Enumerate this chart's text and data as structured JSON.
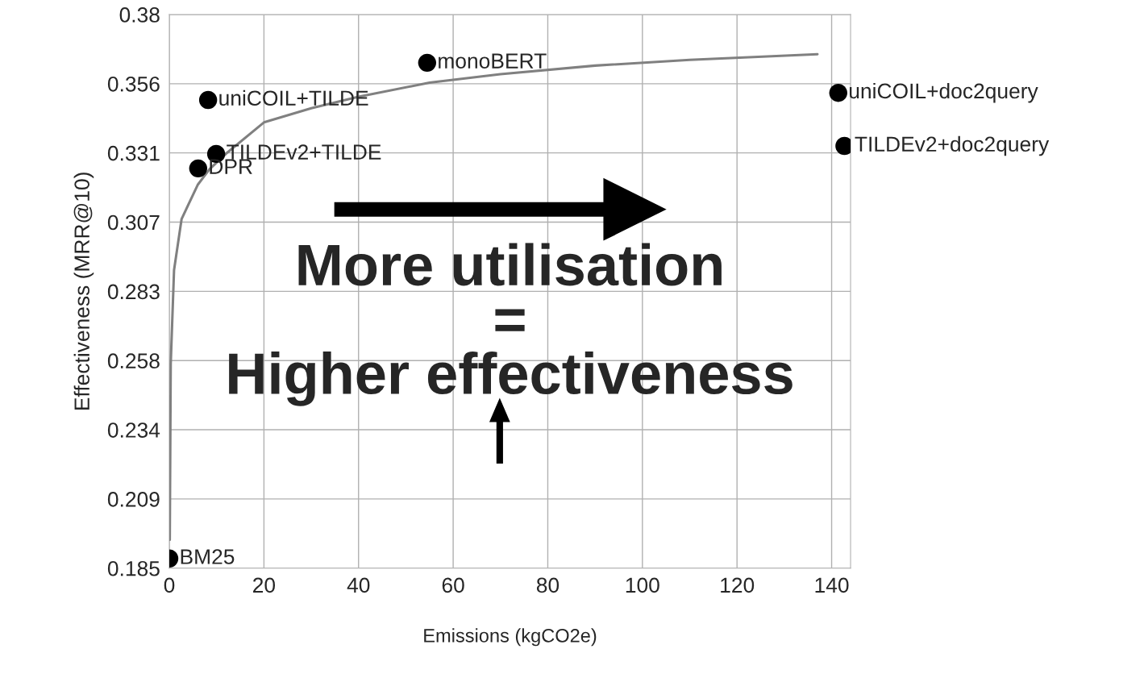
{
  "chart_data": {
    "type": "scatter",
    "xlabel": "Emissions (kgCO2e)",
    "ylabel": "Effectiveness (MRR@10)",
    "xlim": [
      0,
      144
    ],
    "xticks": [
      0,
      20,
      40,
      60,
      80,
      100,
      120,
      140
    ],
    "ylim": [
      0.185,
      0.38
    ],
    "yticks": [
      {
        "value": 0.185,
        "label": "0.185"
      },
      {
        "value": 0.209375,
        "label": "0.209"
      },
      {
        "value": 0.23375,
        "label": "0.234"
      },
      {
        "value": 0.258125,
        "label": "0.258"
      },
      {
        "value": 0.2825,
        "label": "0.283"
      },
      {
        "value": 0.306875,
        "label": "0.307"
      },
      {
        "value": 0.33125,
        "label": "0.331"
      },
      {
        "value": 0.355625,
        "label": "0.356"
      },
      {
        "value": 0.38,
        "label": "0.38"
      }
    ],
    "grid": true,
    "legend": false,
    "marker": "circle",
    "series": [
      {
        "type": "line",
        "marker": "none",
        "color": "#808080",
        "x": [
          0.1,
          0.3,
          1,
          2.6,
          6,
          8.5,
          12,
          20,
          30,
          40,
          55,
          70,
          90,
          110,
          137
        ],
        "values": [
          0.195,
          0.257,
          0.29,
          0.308,
          0.32,
          0.3255,
          0.331,
          0.342,
          0.347,
          0.351,
          0.356,
          0.359,
          0.362,
          0.364,
          0.366
        ]
      },
      {
        "name": "BM25",
        "color": "#000000",
        "x": [
          0
        ],
        "values": [
          0.1884
        ]
      },
      {
        "name": "DPR",
        "color": "#000000",
        "x": [
          6.1
        ],
        "values": [
          0.3258
        ]
      },
      {
        "name": "TILDEv2+TILDE",
        "color": "#000000",
        "x": [
          9.9
        ],
        "values": [
          0.3309
        ]
      },
      {
        "name": "uniCOIL+TILDE",
        "color": "#000000",
        "x": [
          8.2
        ],
        "values": [
          0.3499
        ]
      },
      {
        "name": "monoBERT",
        "color": "#000000",
        "x": [
          54.5
        ],
        "values": [
          0.363
        ]
      },
      {
        "name": "uniCOIL+doc2query",
        "color": "#000000",
        "x": [
          141.4
        ],
        "values": [
          0.3524
        ]
      },
      {
        "name": "TILDEv2+doc2query",
        "color": "#000000",
        "x": [
          142.7
        ],
        "values": [
          0.3337
        ]
      }
    ],
    "annotations": [
      "More utilisation\n=\nHigher effectiveness"
    ]
  }
}
